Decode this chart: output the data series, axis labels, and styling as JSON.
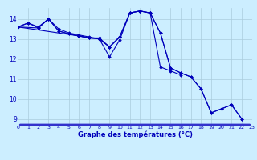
{
  "xlabel": "Graphe des températures (°C)",
  "x": [
    0,
    1,
    2,
    3,
    4,
    5,
    6,
    7,
    8,
    9,
    10,
    11,
    12,
    13,
    14,
    15,
    16,
    17,
    18,
    19,
    20,
    21,
    22,
    23
  ],
  "series": [
    [
      13.6,
      13.8,
      13.6,
      14.0,
      13.5,
      13.3,
      13.2,
      13.1,
      13.0,
      12.1,
      12.95,
      14.3,
      14.4,
      14.3,
      13.3,
      11.55,
      11.3,
      11.1,
      10.5,
      9.3,
      9.5,
      9.7,
      9.0,
      null
    ],
    [
      13.6,
      null,
      13.55,
      14.0,
      13.4,
      13.25,
      13.15,
      13.05,
      13.05,
      12.6,
      13.1,
      14.3,
      14.4,
      14.3,
      11.6,
      11.4,
      11.2,
      null,
      null,
      null,
      null,
      null,
      null,
      null
    ],
    [
      13.6,
      13.8,
      13.55,
      14.0,
      13.4,
      13.25,
      13.15,
      13.05,
      13.0,
      12.6,
      13.1,
      null,
      null,
      null,
      null,
      null,
      null,
      null,
      null,
      null,
      null,
      null,
      null,
      null
    ],
    [
      13.6,
      null,
      null,
      null,
      null,
      null,
      13.15,
      13.05,
      13.0,
      12.6,
      13.1,
      14.3,
      14.4,
      14.3,
      13.3,
      11.55,
      11.3,
      11.1,
      10.5,
      9.3,
      9.5,
      9.7,
      9.0,
      null
    ]
  ],
  "line_color": "#0000bb",
  "marker": "D",
  "markersize": 1.8,
  "linewidth": 0.8,
  "ylim": [
    8.7,
    14.55
  ],
  "yticks": [
    9,
    10,
    11,
    12,
    13,
    14
  ],
  "xlim": [
    0,
    23
  ],
  "xticks": [
    0,
    1,
    2,
    3,
    4,
    5,
    6,
    7,
    8,
    9,
    10,
    11,
    12,
    13,
    14,
    15,
    16,
    17,
    18,
    19,
    20,
    21,
    22,
    23
  ],
  "bg_color": "#cceeff",
  "grid_color": "#aaccdd",
  "axis_color": "#0000bb",
  "tick_color": "#0000bb",
  "label_color": "#0000bb",
  "bottom_bar_color": "#3333cc"
}
